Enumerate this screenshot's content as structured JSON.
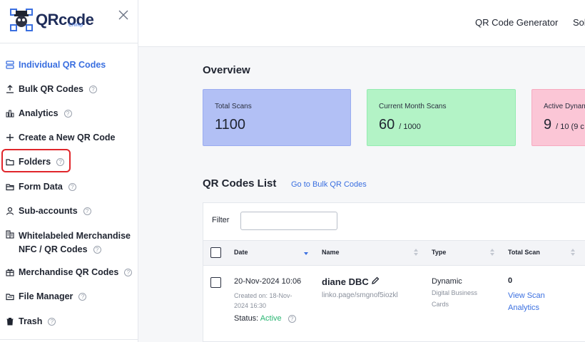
{
  "brand": {
    "name": "QRcode",
    "sub": "Chimp"
  },
  "sidebar": {
    "items": [
      {
        "label": "Individual QR Codes",
        "icon": "stack-icon",
        "active": true
      },
      {
        "label": "Bulk QR Codes",
        "icon": "upload-icon"
      },
      {
        "label": "Analytics",
        "icon": "bar-chart-icon"
      },
      {
        "label": "Create a New QR Code",
        "icon": "plus-icon"
      },
      {
        "label": "Folders",
        "icon": "folder-icon"
      },
      {
        "label": "Form Data",
        "icon": "folder-open-icon"
      },
      {
        "label": "Sub-accounts",
        "icon": "user-icon"
      },
      {
        "label_line1": "Whitelabeled Merchandise",
        "label_line2": "NFC / QR Codes",
        "icon": "building-icon"
      },
      {
        "label": "Merchandise QR Codes",
        "icon": "gift-icon"
      },
      {
        "label": "File Manager",
        "icon": "folder-files-icon"
      },
      {
        "label": "Trash",
        "icon": "trash-icon"
      }
    ],
    "help_glyph": "?"
  },
  "topbar": {
    "links": [
      "QR Code Generator",
      "Sol"
    ]
  },
  "overview": {
    "title": "Overview",
    "cards": [
      {
        "label": "Total Scans",
        "value": "1100",
        "sub": "",
        "color": "#b2c0f5"
      },
      {
        "label": "Current Month Scans",
        "value": "60",
        "sub": "/ 1000",
        "color": "#b3f3c6"
      },
      {
        "label": "Active Dynam",
        "value": "9",
        "sub": "/ 10 (9 c",
        "color": "#fbc6d6"
      }
    ]
  },
  "list": {
    "title": "QR Codes List",
    "bulk_link": "Go to Bulk QR Codes",
    "filter_label": "Filter",
    "filter_value": "",
    "columns": [
      "Date",
      "Name",
      "Type",
      "Total Scan"
    ],
    "rows": [
      {
        "date": "20-Nov-2024 10:06",
        "created_line1": "Created on: 18-Nov-",
        "created_line2": "2024 16:30",
        "status_label": "Status:",
        "status": "Active",
        "name": "diane DBC",
        "url": "linko.page/smgnof5iozkl",
        "type": "Dynamic",
        "type_sub1": "Digital Business",
        "type_sub2": "Cards",
        "scans": "0",
        "view_line1": "View Scan",
        "view_line2": "Analytics"
      }
    ]
  }
}
